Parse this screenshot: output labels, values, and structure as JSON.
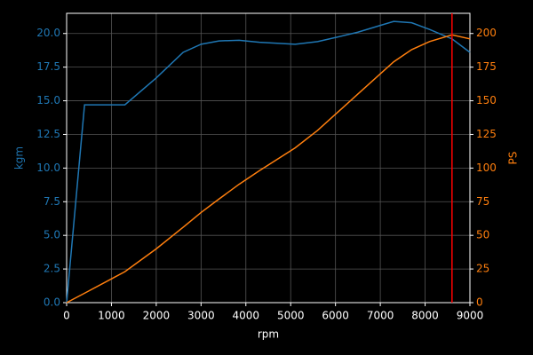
{
  "chart_data": {
    "type": "line",
    "x_label": "rpm",
    "y_label": "kgm",
    "y2_label": "PS",
    "x": [
      0,
      400,
      1300,
      2000,
      2600,
      3000,
      3400,
      3850,
      4300,
      5100,
      5600,
      6000,
      6500,
      7000,
      7300,
      7700,
      8100,
      8600,
      9000
    ],
    "series": [
      {
        "name": "kgm",
        "color": "#1f77b4",
        "values": [
          0,
          14.7,
          14.7,
          16.7,
          18.6,
          19.2,
          19.45,
          19.5,
          19.35,
          19.2,
          19.4,
          19.7,
          20.1,
          20.6,
          20.9,
          20.8,
          20.3,
          19.6,
          18.6
        ]
      },
      {
        "name": "PS",
        "color": "#ff7f0e",
        "axis": "y2",
        "values": [
          0,
          7,
          23,
          40,
          56,
          67,
          77,
          88,
          98,
          115,
          128,
          140,
          155,
          170,
          179,
          188,
          194,
          199,
          196
        ]
      }
    ],
    "vline": {
      "x": 8600,
      "color": "#ff0000"
    },
    "xlim": [
      0,
      9000
    ],
    "xticks": [
      0,
      1000,
      2000,
      3000,
      4000,
      5000,
      6000,
      7000,
      8000,
      9000
    ],
    "ylim": [
      0,
      21.5
    ],
    "yticks": [
      {
        "value": 0,
        "label": "0.0"
      },
      {
        "value": 2.5,
        "label": "2.5"
      },
      {
        "value": 5,
        "label": "5.0"
      },
      {
        "value": 7.5,
        "label": "7.5"
      },
      {
        "value": 10,
        "label": "10.0"
      },
      {
        "value": 12.5,
        "label": "12.5"
      },
      {
        "value": 15,
        "label": "15.0"
      },
      {
        "value": 17.5,
        "label": "17.5"
      },
      {
        "value": 20,
        "label": "20.0"
      }
    ],
    "y2lim": [
      0,
      215
    ],
    "y2ticks": [
      0,
      25,
      50,
      75,
      100,
      125,
      150,
      175,
      200
    ],
    "grid": true,
    "background": "#000000"
  }
}
